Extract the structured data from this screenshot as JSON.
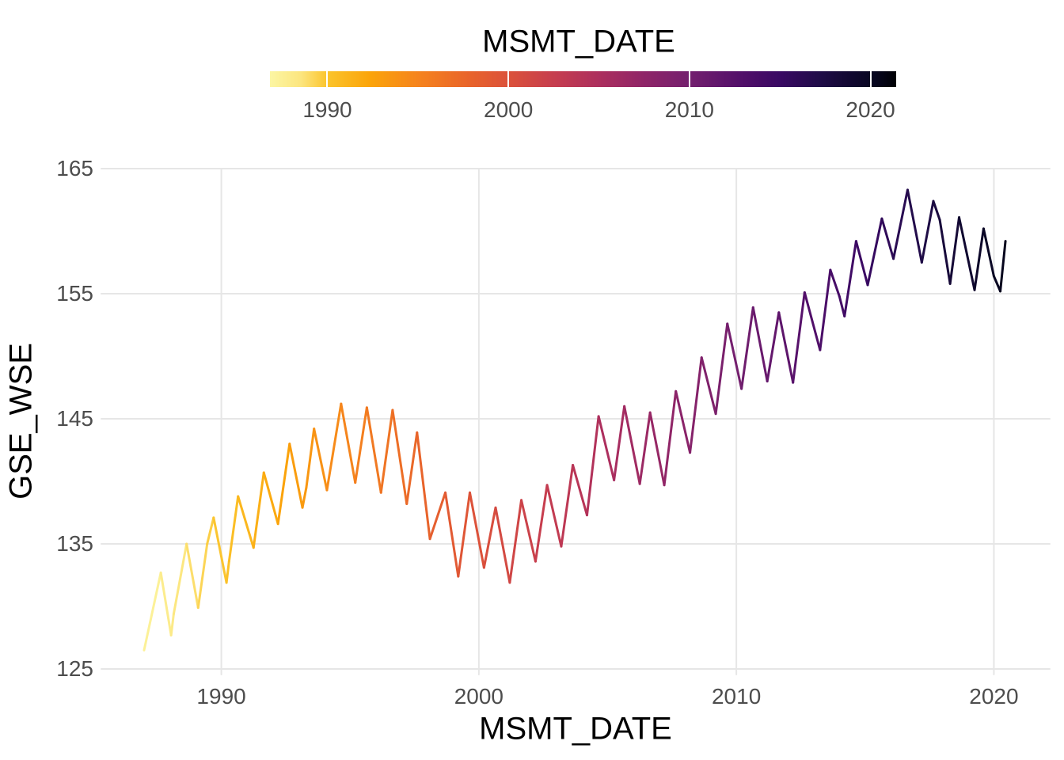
{
  "figure": {
    "background_color": "#FFFFFF",
    "grid_color": "#E6E6E6",
    "tick_label_color": "#4D4D4D",
    "title_color": "#000000"
  },
  "legend": {
    "title": "MSMT_DATE",
    "position": "top",
    "orientation": "horizontal-colorbar",
    "tick_labels": [
      "1990",
      "2000",
      "2010",
      "2020"
    ],
    "tick_values": [
      1990,
      2000,
      2010,
      2020
    ],
    "domain": [
      1986.83,
      2021.42
    ]
  },
  "x_axis": {
    "title": "MSMT_DATE",
    "tick_labels": [
      "1990",
      "2000",
      "2010",
      "2020"
    ],
    "tick_values": [
      1990,
      2000,
      2010,
      2020
    ]
  },
  "y_axis": {
    "title": "GSE_WSE",
    "tick_labels": [
      "125",
      "135",
      "145",
      "155",
      "165"
    ],
    "tick_values": [
      125,
      135,
      145,
      155,
      165
    ]
  },
  "chart_data": {
    "type": "line",
    "title": "",
    "xlabel": "MSMT_DATE",
    "ylabel": "GSE_WSE",
    "x_units": "decimal years",
    "xlim": [
      1985.34,
      2022.17
    ],
    "ylim": [
      124.56,
      165.0
    ],
    "grid": "major gridlines only, white background",
    "legend_position": "top colorbar",
    "color_scale": {
      "variable": "MSMT_DATE",
      "palette": "inferno reversed (pale yellow = 1987, black = 2021)",
      "domain": [
        1986.83,
        2021.42
      ],
      "stops": [
        {
          "t": 0.0,
          "color": "#FCF6A3"
        },
        {
          "t": 0.05,
          "color": "#FCE57E"
        },
        {
          "t": 0.092,
          "color": "#FBC42C"
        },
        {
          "t": 0.16,
          "color": "#FBA40A"
        },
        {
          "t": 0.24,
          "color": "#F5821E"
        },
        {
          "t": 0.32,
          "color": "#E8632B"
        },
        {
          "t": 0.382,
          "color": "#DB513B"
        },
        {
          "t": 0.46,
          "color": "#C43C50"
        },
        {
          "t": 0.526,
          "color": "#AC2F5E"
        },
        {
          "t": 0.6,
          "color": "#8E2468"
        },
        {
          "t": 0.671,
          "color": "#731F6E"
        },
        {
          "t": 0.75,
          "color": "#53106A"
        },
        {
          "t": 0.815,
          "color": "#390963"
        },
        {
          "t": 0.88,
          "color": "#1F0C47"
        },
        {
          "t": 0.93,
          "color": "#10082F"
        },
        {
          "t": 0.965,
          "color": "#070620"
        },
        {
          "t": 1.0,
          "color": "#000004"
        }
      ]
    },
    "series": [
      {
        "name": "GSE_WSE",
        "color_by": "MSMT_DATE",
        "points": [
          [
            1987.0,
            126.5
          ],
          [
            1987.65,
            132.7
          ],
          [
            1988.05,
            127.7
          ],
          [
            1988.15,
            129.4
          ],
          [
            1988.65,
            135.0
          ],
          [
            1989.1,
            129.9
          ],
          [
            1989.45,
            135.0
          ],
          [
            1989.7,
            137.1
          ],
          [
            1990.2,
            131.9
          ],
          [
            1990.3,
            133.6
          ],
          [
            1990.65,
            138.8
          ],
          [
            1991.25,
            134.7
          ],
          [
            1991.65,
            140.7
          ],
          [
            1992.2,
            136.6
          ],
          [
            1992.65,
            143.0
          ],
          [
            1993.15,
            137.9
          ],
          [
            1993.3,
            139.5
          ],
          [
            1993.6,
            144.2
          ],
          [
            1994.1,
            139.3
          ],
          [
            1994.65,
            146.2
          ],
          [
            1995.2,
            139.9
          ],
          [
            1995.65,
            145.9
          ],
          [
            1996.2,
            139.1
          ],
          [
            1996.65,
            145.7
          ],
          [
            1997.2,
            138.2
          ],
          [
            1997.6,
            143.9
          ],
          [
            1998.1,
            135.4
          ],
          [
            1998.7,
            139.1
          ],
          [
            1999.2,
            132.4
          ],
          [
            1999.65,
            139.1
          ],
          [
            2000.2,
            133.1
          ],
          [
            2000.65,
            137.9
          ],
          [
            2001.2,
            131.9
          ],
          [
            2001.65,
            138.5
          ],
          [
            2002.2,
            133.6
          ],
          [
            2002.65,
            139.7
          ],
          [
            2003.2,
            134.8
          ],
          [
            2003.65,
            141.3
          ],
          [
            2004.2,
            137.3
          ],
          [
            2004.65,
            145.2
          ],
          [
            2005.25,
            140.1
          ],
          [
            2005.65,
            146.0
          ],
          [
            2006.25,
            139.8
          ],
          [
            2006.65,
            145.5
          ],
          [
            2007.2,
            139.7
          ],
          [
            2007.65,
            147.2
          ],
          [
            2008.2,
            142.3
          ],
          [
            2008.65,
            149.9
          ],
          [
            2009.2,
            145.4
          ],
          [
            2009.65,
            152.6
          ],
          [
            2010.2,
            147.4
          ],
          [
            2010.65,
            153.9
          ],
          [
            2011.2,
            148.0
          ],
          [
            2011.65,
            153.5
          ],
          [
            2012.2,
            147.9
          ],
          [
            2012.65,
            155.1
          ],
          [
            2013.25,
            150.5
          ],
          [
            2013.65,
            156.9
          ],
          [
            2014.0,
            154.8
          ],
          [
            2014.2,
            153.2
          ],
          [
            2014.65,
            159.2
          ],
          [
            2015.1,
            155.7
          ],
          [
            2015.65,
            161.0
          ],
          [
            2016.1,
            157.8
          ],
          [
            2016.65,
            163.3
          ],
          [
            2017.2,
            157.5
          ],
          [
            2017.65,
            162.4
          ],
          [
            2017.9,
            160.9
          ],
          [
            2018.3,
            155.8
          ],
          [
            2018.65,
            161.1
          ],
          [
            2019.25,
            155.3
          ],
          [
            2019.6,
            160.2
          ],
          [
            2020.0,
            156.4
          ],
          [
            2020.25,
            155.2
          ],
          [
            2020.45,
            159.2
          ]
        ]
      }
    ]
  }
}
